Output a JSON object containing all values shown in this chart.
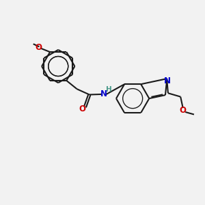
{
  "background_color": "#f2f2f2",
  "bond_color": "#1a1a1a",
  "O_color": "#cc0000",
  "N_color": "#0000cc",
  "H_color": "#4a9a8a",
  "line_width": 1.5,
  "dbo": 0.055,
  "figsize": [
    3.0,
    3.0
  ],
  "dpi": 100,
  "xlim": [
    0,
    10
  ],
  "ylim": [
    0,
    10
  ]
}
